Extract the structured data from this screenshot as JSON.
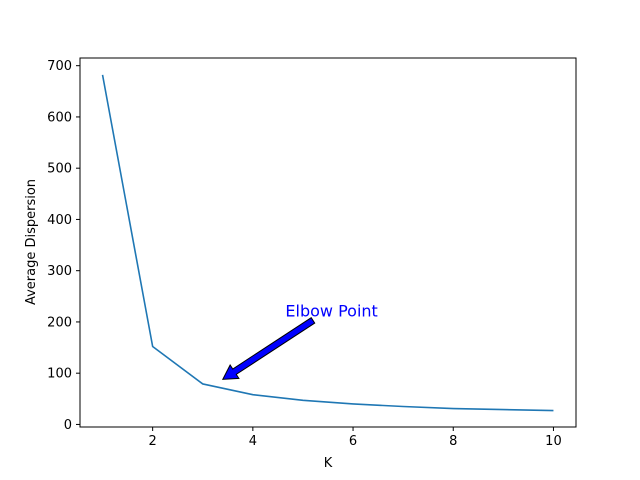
{
  "chart_data": {
    "type": "line",
    "title": "",
    "xlabel": "K",
    "ylabel": "Average Dispersion",
    "xlim": [
      0.55,
      10.45
    ],
    "ylim": [
      -5,
      715
    ],
    "x_ticks": [
      2,
      4,
      6,
      8,
      10
    ],
    "y_ticks": [
      0,
      100,
      200,
      300,
      400,
      500,
      600,
      700
    ],
    "grid": false,
    "legend": "none",
    "series": [
      {
        "color": "#1f77b4",
        "x": [
          1,
          2,
          3,
          4,
          5,
          6,
          7,
          8,
          9,
          10
        ],
        "values": [
          682,
          152,
          79,
          58,
          47,
          40,
          35,
          31,
          29,
          27
        ]
      }
    ],
    "annotations": [
      {
        "text": "Elbow Point",
        "color": "#0000ff",
        "arrow_color": "#0000ff",
        "text_at": [
          4.65,
          222
        ],
        "arrow_from": [
          5.2,
          203
        ],
        "arrow_to": [
          3.4,
          88
        ]
      }
    ]
  }
}
